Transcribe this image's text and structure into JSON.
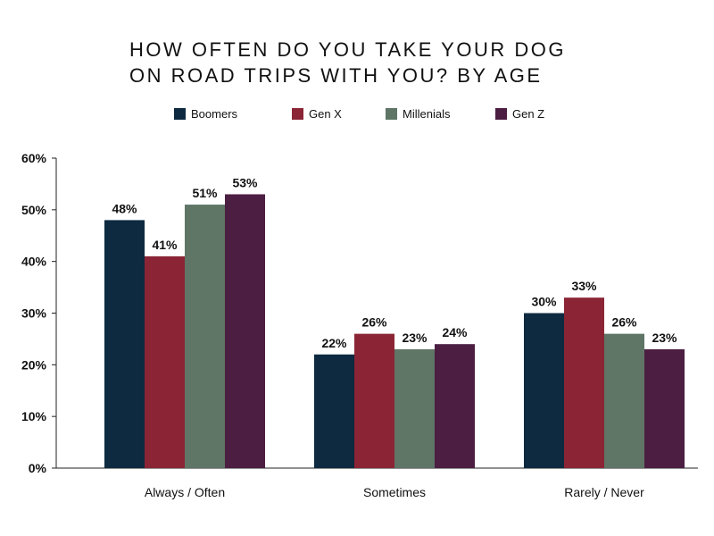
{
  "chart_data": {
    "type": "bar",
    "title_lines": [
      "HOW OFTEN DO YOU TAKE YOUR DOG",
      "ON ROAD TRIPS WITH YOU? BY AGE"
    ],
    "categories": [
      "Always / Often",
      "Sometimes",
      "Rarely / Never"
    ],
    "series": [
      {
        "name": "Boomers",
        "color": "#0d2a40",
        "values": [
          48,
          22,
          30
        ]
      },
      {
        "name": "Gen X",
        "color": "#8b2535",
        "values": [
          41,
          26,
          33
        ]
      },
      {
        "name": "Millenials",
        "color": "#5f7566",
        "values": [
          51,
          23,
          26
        ]
      },
      {
        "name": "Gen Z",
        "color": "#4b1e42",
        "values": [
          53,
          24,
          23
        ]
      }
    ],
    "y_ticks": [
      "0%",
      "10%",
      "20%",
      "30%",
      "40%",
      "50%",
      "60%"
    ],
    "value_labels": [
      [
        "48%",
        "22%",
        "30%"
      ],
      [
        "41%",
        "26%",
        "33%"
      ],
      [
        "51%",
        "23%",
        "26%"
      ],
      [
        "53%",
        "24%",
        "23%"
      ]
    ],
    "ylim": [
      0,
      60
    ],
    "grid": false,
    "legend_position": "top"
  }
}
